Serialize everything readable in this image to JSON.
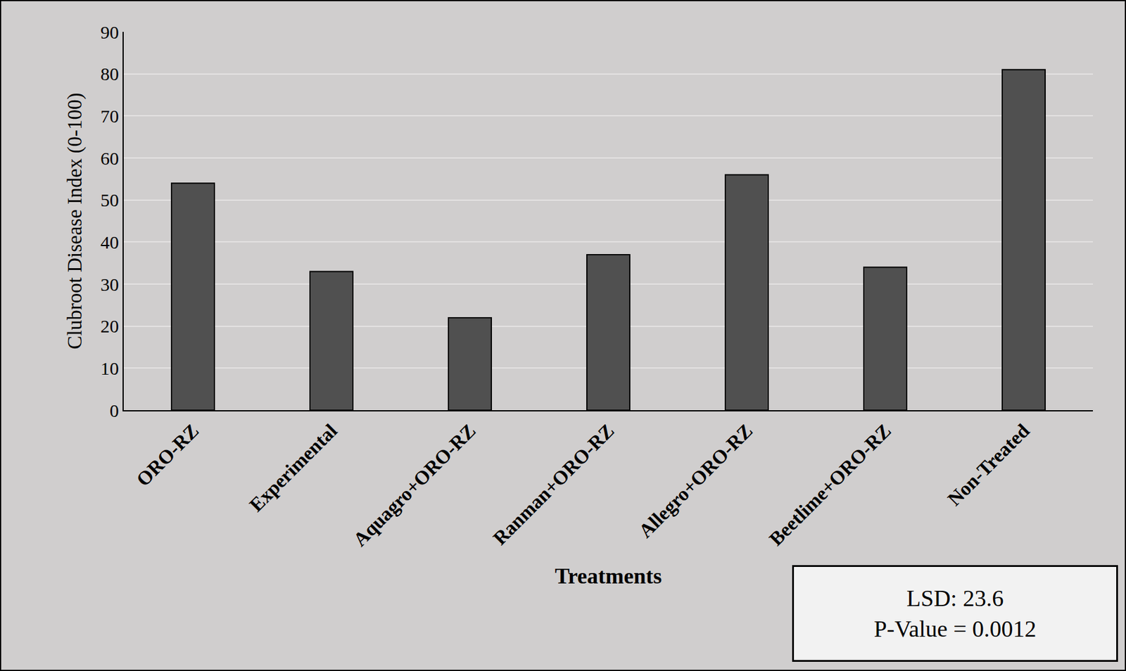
{
  "chart_data": {
    "type": "bar",
    "x_label": "Treatments",
    "y_label": "Clubroot Disease Index (0-100)",
    "categories": [
      "ORO-RZ",
      "Experimental",
      "Aquagro+ORO-RZ",
      "Ranman+ORO-RZ",
      "Allegro+ORO-RZ",
      "Beetlime+ORO-RZ",
      "Non-Treated"
    ],
    "values": [
      54,
      33,
      22,
      37,
      56,
      34,
      81
    ],
    "color": "#505050",
    "ylim": [
      0,
      90
    ],
    "yticks": [
      0,
      10,
      20,
      30,
      40,
      50,
      60,
      70,
      80,
      90
    ],
    "grid": true,
    "annotations": [
      "LSD: 23.6",
      "P-Value = 0.0012"
    ]
  }
}
